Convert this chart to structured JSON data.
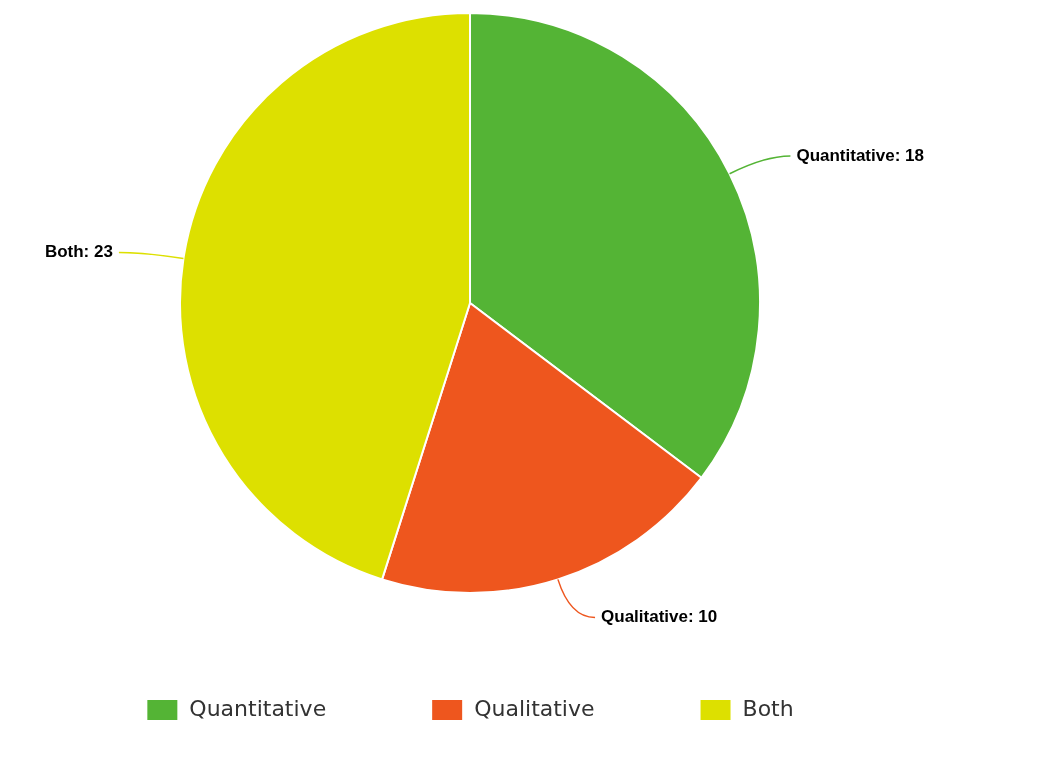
{
  "chart_data": {
    "type": "pie",
    "categories": [
      "Quantitative",
      "Qualitative",
      "Both"
    ],
    "values": [
      18,
      10,
      23
    ],
    "colors": [
      "#54b435",
      "#ee561e",
      "#dde000"
    ],
    "value_labels": [
      "Quantitative: 18",
      "Qualitative: 10",
      "Both: 23"
    ],
    "legend": "bottom"
  }
}
